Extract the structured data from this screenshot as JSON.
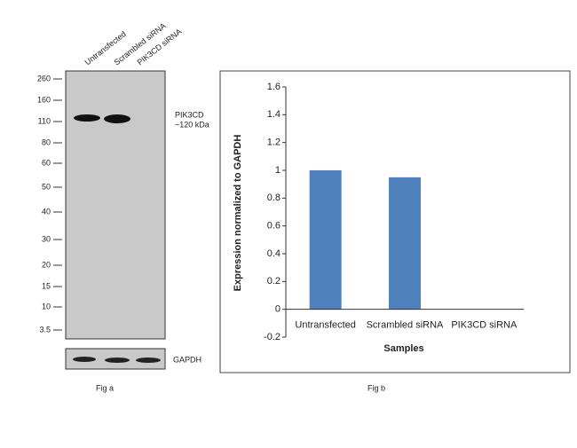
{
  "blot": {
    "lanes": [
      "Untransfected",
      "Scrambled siRNA",
      "PIK3CD siRNA"
    ],
    "markers": [
      "260",
      "160",
      "110",
      "80",
      "60",
      "50",
      "40",
      "30",
      "20",
      "15",
      "10",
      "3.5"
    ],
    "band_label": "PIK3CD",
    "band_size": "~120 kDa",
    "loading_control": "GAPDH",
    "caption": "Fig a"
  },
  "chart_data": {
    "type": "bar",
    "categories": [
      "Untransfected",
      "Scrambled siRNA",
      "PIK3CD siRNA"
    ],
    "values": [
      1,
      0.95,
      0
    ],
    "color": "#4f81bd",
    "xlabel": "Samples",
    "ylabel": "Expression normalized to GAPDH",
    "ylim": [
      -0.2,
      1.6
    ],
    "yticks": [
      -0.2,
      0,
      0.2,
      0.4,
      0.6,
      0.8,
      1,
      1.2,
      1.4,
      1.6
    ],
    "caption": "Fig b"
  }
}
